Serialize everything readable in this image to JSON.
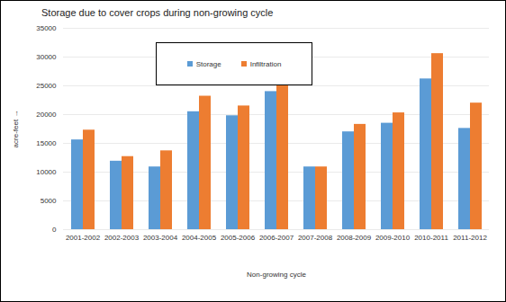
{
  "chart_data": {
    "type": "bar",
    "title": "Storage due to cover crops during non-growing cycle",
    "xlabel": "Non-growing cycle",
    "ylabel": "acre-feet",
    "categories": [
      "2001-2002",
      "2002-2003",
      "2003-2004",
      "2004-2005",
      "2005-2006",
      "2006-2007",
      "2007-2008",
      "2008-2009",
      "2009-2010",
      "2010-2011",
      "2011-2012"
    ],
    "series": [
      {
        "name": "Storage",
        "color": "#5b9bd5",
        "values": [
          15600,
          11900,
          10900,
          20500,
          19800,
          24000,
          10900,
          17000,
          18500,
          26200,
          17600
        ]
      },
      {
        "name": "Infiltration",
        "color": "#ed7d31",
        "values": [
          17300,
          12700,
          13700,
          23200,
          21500,
          25200,
          10900,
          18300,
          20300,
          30600,
          22000
        ]
      }
    ],
    "ylim": [
      0,
      35000
    ],
    "yticks": [
      0,
      5000,
      10000,
      15000,
      20000,
      25000,
      30000,
      35000
    ],
    "grid": true,
    "legend": "top"
  }
}
